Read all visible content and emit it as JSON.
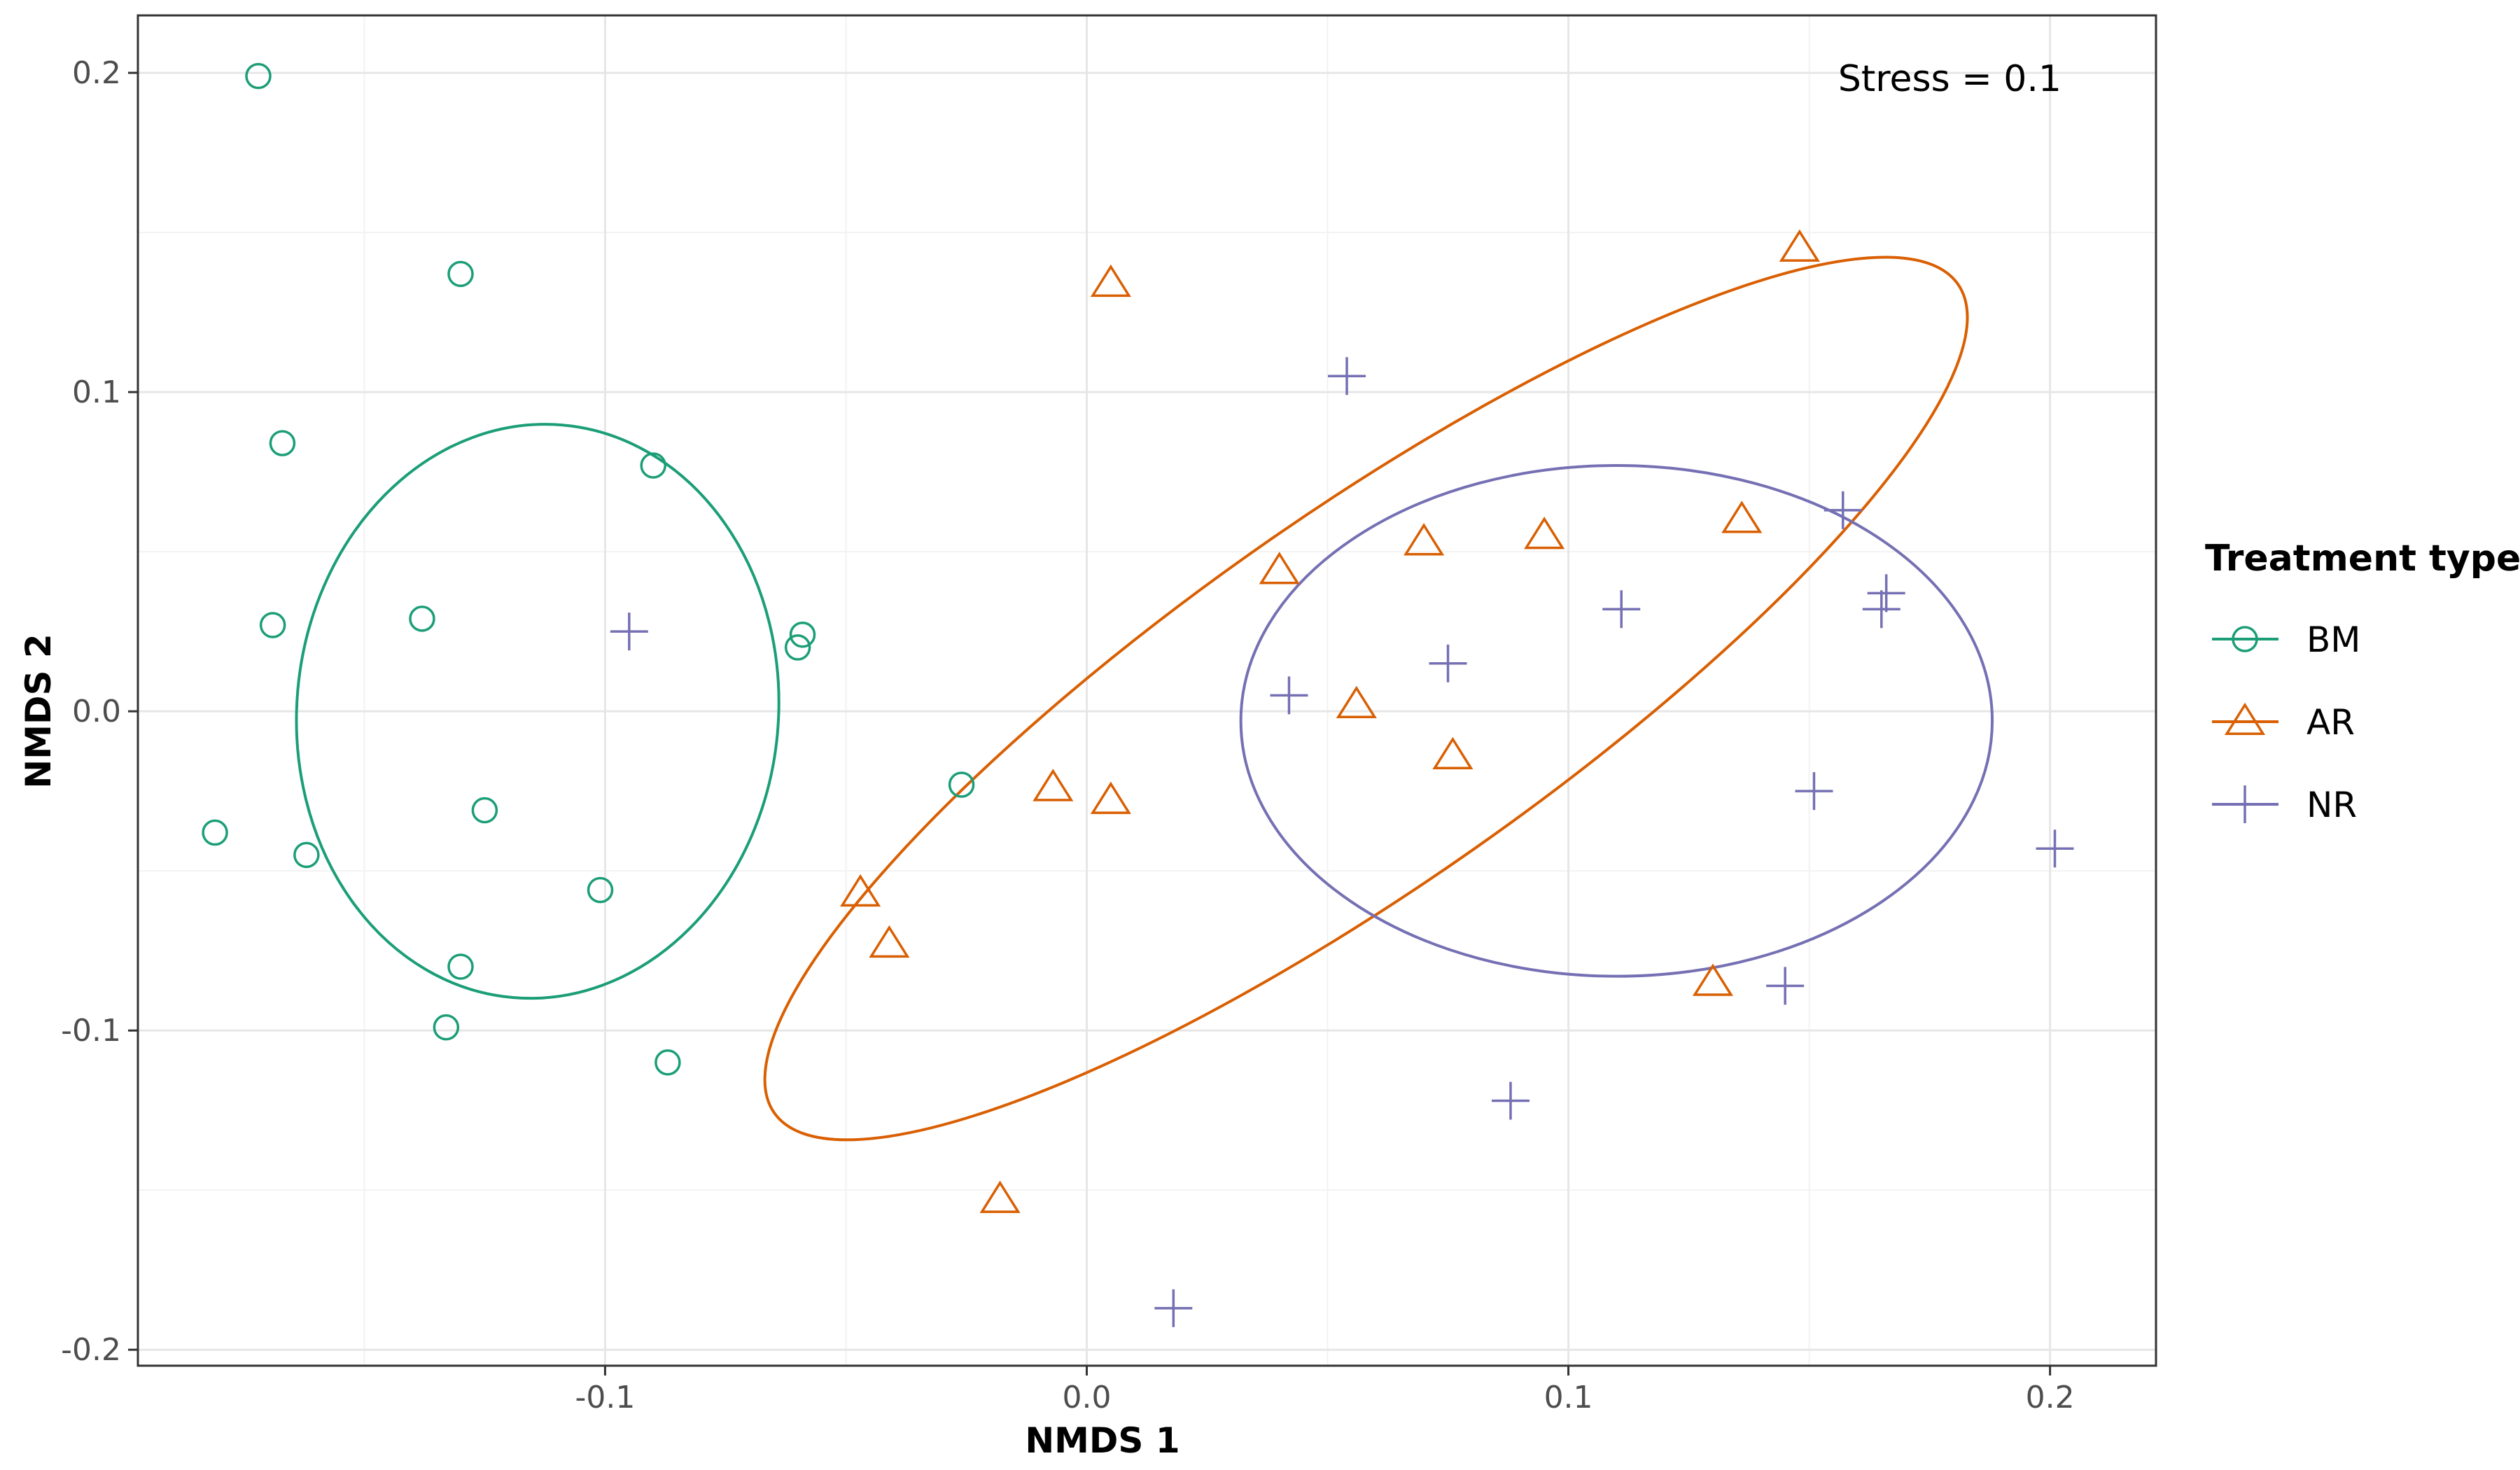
{
  "chart_data": {
    "type": "scatter",
    "xlabel": "NMDS 1",
    "ylabel": "NMDS 2",
    "xlim": [
      -0.197,
      0.222
    ],
    "ylim": [
      -0.205,
      0.218
    ],
    "x_ticks": [
      -0.1,
      0.0,
      0.1,
      0.2
    ],
    "x_tick_labels": [
      "-0.1",
      "0.0",
      "0.1",
      "0.2"
    ],
    "y_ticks": [
      -0.2,
      -0.1,
      0.0,
      0.1,
      0.2
    ],
    "y_tick_labels": [
      "-0.2",
      "-0.1",
      "0.0",
      "0.1",
      "0.2"
    ],
    "grid": true,
    "annotation": "Stress = 0.1",
    "legend": {
      "title": "Treatment type",
      "position": "right",
      "entries": [
        "BM",
        "AR",
        "NR"
      ]
    },
    "series": [
      {
        "name": "BM",
        "color": "#1b9e77",
        "marker": "circle",
        "points": [
          [
            -0.172,
            0.199
          ],
          [
            -0.13,
            0.137
          ],
          [
            -0.167,
            0.084
          ],
          [
            -0.09,
            0.077
          ],
          [
            -0.169,
            0.027
          ],
          [
            -0.138,
            0.029
          ],
          [
            -0.059,
            0.024
          ],
          [
            -0.06,
            0.02
          ],
          [
            -0.026,
            -0.023
          ],
          [
            -0.181,
            -0.038
          ],
          [
            -0.162,
            -0.045
          ],
          [
            -0.125,
            -0.031
          ],
          [
            -0.101,
            -0.056
          ],
          [
            -0.13,
            -0.08
          ],
          [
            -0.133,
            -0.099
          ],
          [
            -0.087,
            -0.11
          ]
        ],
        "ellipse": {
          "cx": -0.114,
          "cy": 0.0,
          "rx": 0.05,
          "ry": 0.09,
          "angle_deg": -5
        }
      },
      {
        "name": "AR",
        "color": "#d95f02",
        "marker": "triangle",
        "points": [
          [
            0.148,
            0.145
          ],
          [
            0.005,
            0.134
          ],
          [
            0.136,
            0.06
          ],
          [
            0.095,
            0.055
          ],
          [
            0.07,
            0.053
          ],
          [
            0.04,
            0.044
          ],
          [
            0.056,
            0.002
          ],
          [
            0.076,
            -0.014
          ],
          [
            -0.007,
            -0.024
          ],
          [
            0.005,
            -0.028
          ],
          [
            -0.047,
            -0.057
          ],
          [
            -0.041,
            -0.073
          ],
          [
            0.13,
            -0.085
          ],
          [
            -0.018,
            -0.153
          ]
        ],
        "ellipse": {
          "cx": 0.058,
          "cy": 0.004,
          "rx": 0.15,
          "ry": 0.058,
          "angle_deg": 35
        }
      },
      {
        "name": "NR",
        "color": "#7570b3",
        "marker": "plus",
        "points": [
          [
            0.054,
            0.105
          ],
          [
            0.157,
            0.063
          ],
          [
            0.166,
            0.037
          ],
          [
            0.165,
            0.032
          ],
          [
            -0.095,
            0.025
          ],
          [
            0.111,
            0.032
          ],
          [
            0.075,
            0.015
          ],
          [
            0.042,
            0.005
          ],
          [
            0.151,
            -0.025
          ],
          [
            0.201,
            -0.043
          ],
          [
            0.145,
            -0.086
          ],
          [
            0.088,
            -0.122
          ],
          [
            0.018,
            -0.187
          ]
        ],
        "ellipse": {
          "cx": 0.11,
          "cy": -0.003,
          "rx": 0.078,
          "ry": 0.08,
          "angle_deg": 0
        }
      }
    ]
  }
}
